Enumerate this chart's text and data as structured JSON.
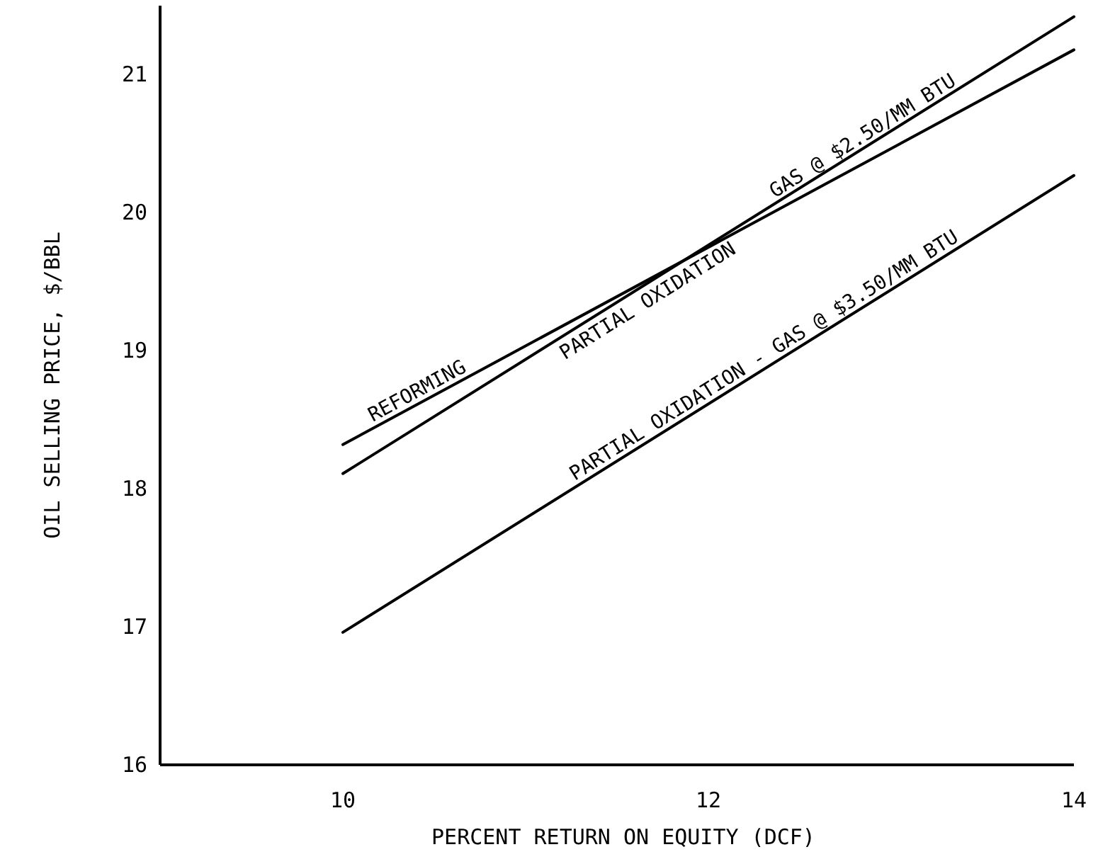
{
  "chart_data": {
    "type": "line",
    "xlabel": "PERCENT RETURN ON EQUITY (DCF)",
    "ylabel": "OIL SELLING PRICE, $/BBL",
    "xlim": [
      9,
      14
    ],
    "xticks": [
      10,
      12,
      14
    ],
    "ylim": [
      16,
      21.5
    ],
    "yticks": [
      16,
      17,
      18,
      19,
      20,
      21
    ],
    "grid": false,
    "marker": "none",
    "line_style": "solid",
    "x": [
      10,
      14
    ],
    "series": [
      {
        "color": "#000000",
        "values": [
          18.32,
          21.18
        ]
      },
      {
        "color": "#000000",
        "values": [
          18.11,
          21.42
        ]
      },
      {
        "color": "#000000",
        "values": [
          16.96,
          20.27
        ]
      }
    ],
    "annotations": [
      {
        "text": "REFORMING",
        "x": 10.43,
        "y": 18.65
      },
      {
        "text": "PARTIAL OXIDATION",
        "x": 11.63,
        "y": 19.44
      },
      {
        "text": "GAS @ $2.50/MM BTU",
        "x": 12.87,
        "y": 20.5
      },
      {
        "text": "PARTIAL OXIDATION - GAS @ $3.50/MM BTU",
        "x": 12.33,
        "y": 18.91
      }
    ]
  }
}
